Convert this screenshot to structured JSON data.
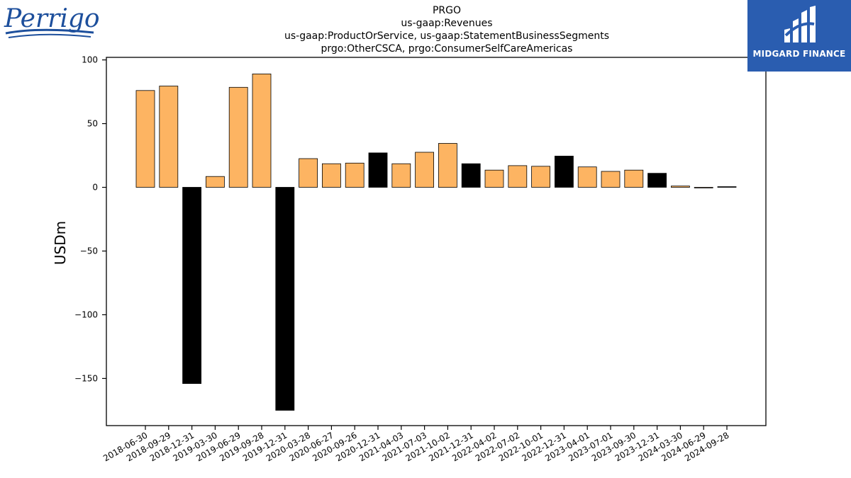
{
  "header": {
    "title_lines": [
      "PRGO",
      "us-gaap:Revenues",
      "us-gaap:ProductOrService, us-gaap:StatementBusinessSegments",
      "prgo:OtherCSCA, prgo:ConsumerSelfCareAmericas"
    ]
  },
  "logos": {
    "left_text": "Perrigo",
    "right_text": "MIDGARD FINANCE",
    "right_bg": "#2a5db0"
  },
  "chart_data": {
    "type": "bar",
    "ylabel": "USDm",
    "xlabel": "",
    "ylim": [
      -187,
      102
    ],
    "yticks": [
      100,
      50,
      0,
      -50,
      -100,
      -150
    ],
    "ytick_labels": [
      "100",
      "50",
      "0",
      "−50",
      "−100",
      "−150"
    ],
    "categories": [
      "2018-06-30",
      "2018-09-29",
      "2018-12-31",
      "2019-03-30",
      "2019-06-29",
      "2019-09-28",
      "2019-12-31",
      "2020-03-28",
      "2020-06-27",
      "2020-09-26",
      "2020-12-31",
      "2021-04-03",
      "2021-07-03",
      "2021-10-02",
      "2021-12-31",
      "2022-04-02",
      "2022-07-02",
      "2022-10-01",
      "2022-12-31",
      "2023-04-01",
      "2023-07-01",
      "2023-09-30",
      "2023-12-31",
      "2024-03-30",
      "2024-06-29",
      "2024-09-28"
    ],
    "values": [
      76,
      79.5,
      -154,
      8.5,
      78.5,
      89,
      -175,
      22.5,
      18.5,
      19,
      27,
      18.5,
      27.5,
      34.5,
      18.5,
      13.5,
      17,
      16.5,
      24.5,
      16,
      12.5,
      13.5,
      11,
      1,
      -0.5,
      0.5
    ],
    "quarter_end_flags": [
      false,
      false,
      true,
      false,
      false,
      false,
      true,
      false,
      false,
      false,
      true,
      false,
      false,
      false,
      true,
      false,
      false,
      false,
      true,
      false,
      false,
      false,
      true,
      false,
      false,
      true
    ],
    "colors": {
      "normal": "#fdb462",
      "highlight": "#000000",
      "edge": "#000000"
    },
    "grid": false,
    "legend": "none"
  }
}
